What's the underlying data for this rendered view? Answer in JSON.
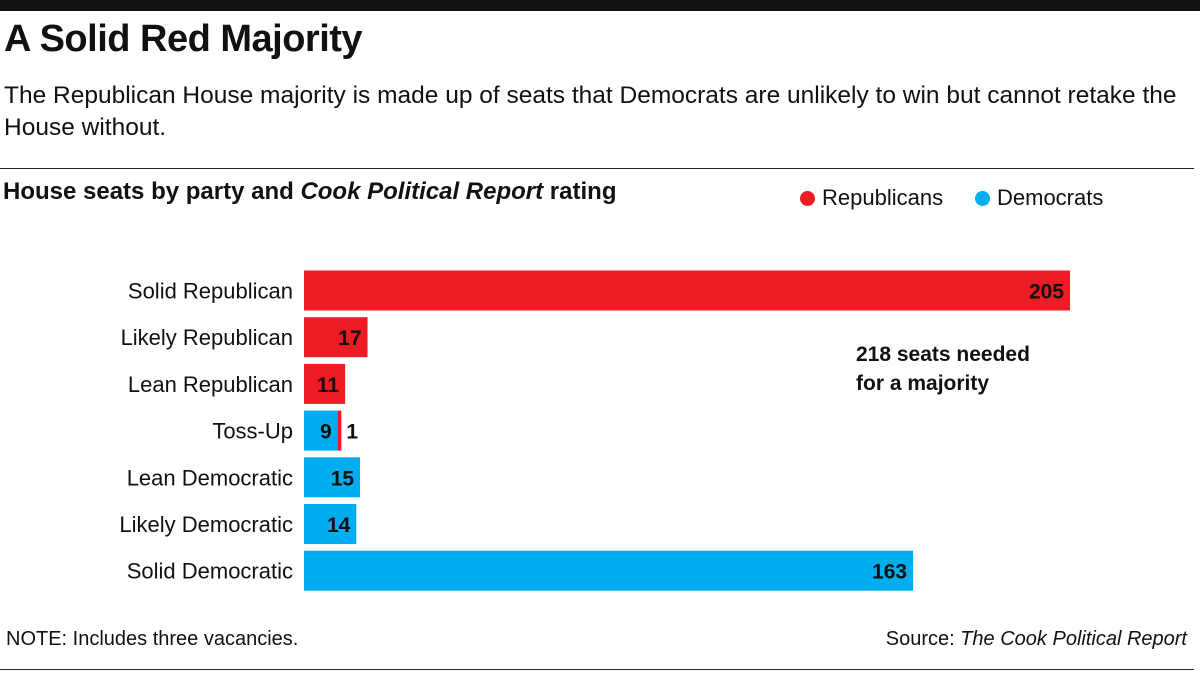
{
  "header": {
    "title": "A Solid Red Majority",
    "subtitle": "The Republican House majority is made up of seats that Democrats are unlikely to win but cannot retake the House without."
  },
  "chart_heading": {
    "text_before": "House seats by party and ",
    "text_italic": "Cook Political Report",
    "text_after": " rating"
  },
  "legend": {
    "republicans": "Republicans",
    "democrats": "Democrats"
  },
  "colors": {
    "republican": "#ed1c24",
    "democrat": "#00aeef",
    "rule": "#222222"
  },
  "chart_data": {
    "type": "bar",
    "orientation": "horizontal",
    "stacked": true,
    "categories": [
      "Solid Republican",
      "Likely Republican",
      "Lean Republican",
      "Toss-Up",
      "Lean Democratic",
      "Likely Democratic",
      "Solid Democratic"
    ],
    "series": [
      {
        "name": "Democrats",
        "values": [
          0,
          0,
          0,
          9,
          15,
          14,
          163
        ]
      },
      {
        "name": "Republicans",
        "values": [
          205,
          17,
          11,
          1,
          0,
          0,
          0
        ]
      }
    ],
    "xlim": [
      0,
      205
    ],
    "annotation": "218 seats needed\nfor a majority",
    "legend_position": "top-right",
    "grid": false
  },
  "footer": {
    "note": "NOTE: Includes three vacancies.",
    "source_label": "Source: ",
    "source_name": "The Cook Political Report"
  }
}
